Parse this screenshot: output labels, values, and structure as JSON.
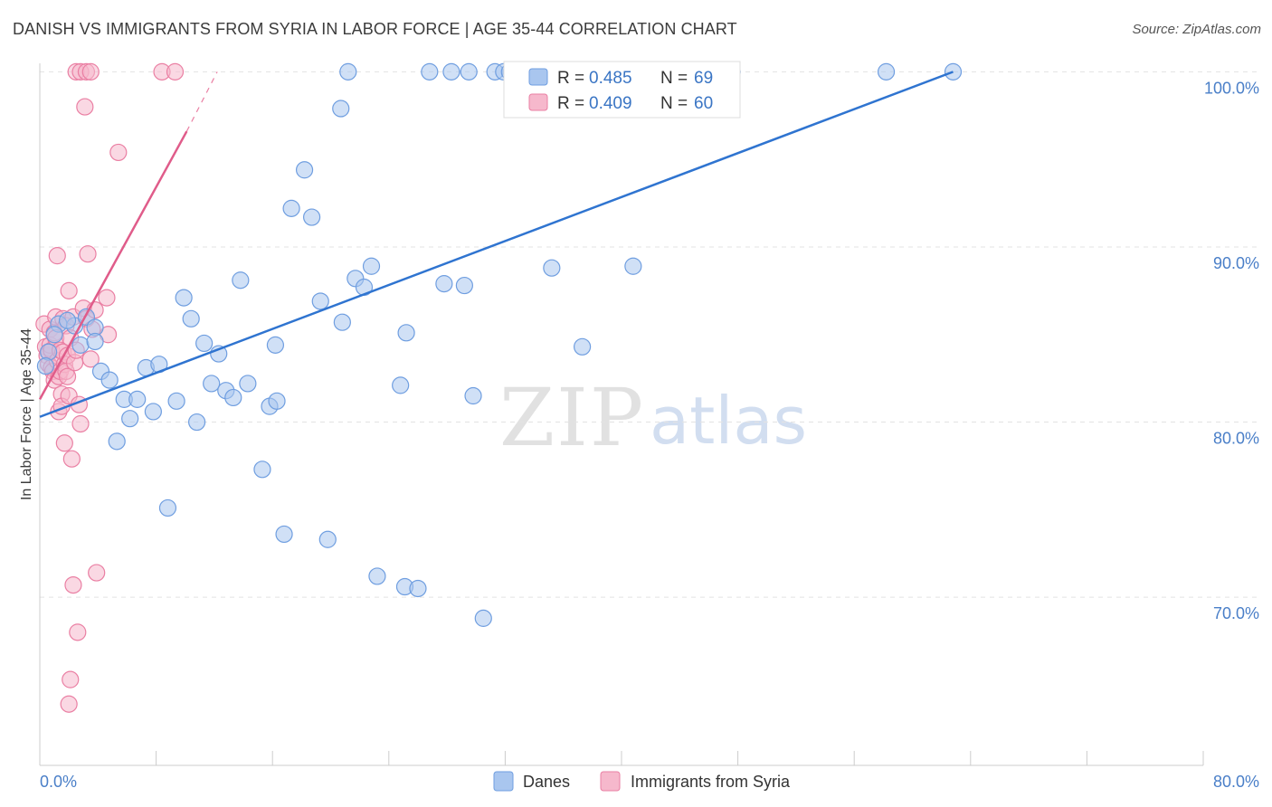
{
  "header": {
    "title": "DANISH VS IMMIGRANTS FROM SYRIA IN LABOR FORCE | AGE 35-44 CORRELATION CHART",
    "source": "Source: ZipAtlas.com"
  },
  "watermark": {
    "zip": "ZIP",
    "atlas": "atlas"
  },
  "colors": {
    "danes": "#6f9ee0",
    "danes_fill": "#a9c6ef",
    "danes_line": "#2f74d0",
    "syria": "#ea7fa3",
    "syria_fill": "#f6b8cc",
    "syria_line": "#e05c8a",
    "grid": "#e3e3e3",
    "tick_text": "#4a7fc8"
  },
  "legend": {
    "rows": [
      {
        "r_label": "R =",
        "r_value": "0.485",
        "n_label": "N =",
        "n_value": "69"
      },
      {
        "r_label": "R =",
        "r_value": "0.409",
        "n_label": "N =",
        "n_value": "60"
      }
    ]
  },
  "bottom_legend": {
    "danes": "Danes",
    "syria": "Immigrants from Syria"
  },
  "chart_data": {
    "type": "scatter",
    "title": "DANISH VS IMMIGRANTS FROM SYRIA IN LABOR FORCE | AGE 35-44 CORRELATION CHART",
    "xlabel": "",
    "ylabel": "In Labor Force | Age 35-44",
    "xlim": [
      0,
      80
    ],
    "ylim": [
      60.4,
      101
    ],
    "x_tick_labels": [
      "0.0%",
      "80.0%"
    ],
    "y_ticks": [
      70,
      80,
      90,
      100
    ],
    "y_tick_labels": [
      "70.0%",
      "80.0%",
      "90.0%",
      "100.0%"
    ],
    "grid": true,
    "series": [
      {
        "name": "Danes",
        "R": 0.485,
        "N": 69,
        "trendline": {
          "x0": 0.0,
          "y0": 80.3,
          "x1": 62.8,
          "y1": 100.0
        },
        "points": [
          [
            1.3,
            85.6
          ],
          [
            2.4,
            85.5
          ],
          [
            3.2,
            86.0
          ],
          [
            2.8,
            84.4
          ],
          [
            3.8,
            85.4
          ],
          [
            3.8,
            84.6
          ],
          [
            4.2,
            82.9
          ],
          [
            4.8,
            82.4
          ],
          [
            5.3,
            78.9
          ],
          [
            5.8,
            81.3
          ],
          [
            6.2,
            80.2
          ],
          [
            6.7,
            81.3
          ],
          [
            7.3,
            83.1
          ],
          [
            7.8,
            80.6
          ],
          [
            8.2,
            83.3
          ],
          [
            8.8,
            75.1
          ],
          [
            9.4,
            81.2
          ],
          [
            9.9,
            87.1
          ],
          [
            10.4,
            85.9
          ],
          [
            10.8,
            80.0
          ],
          [
            11.3,
            84.5
          ],
          [
            11.8,
            82.2
          ],
          [
            12.3,
            83.9
          ],
          [
            12.8,
            81.8
          ],
          [
            13.3,
            81.4
          ],
          [
            13.8,
            88.1
          ],
          [
            14.3,
            82.2
          ],
          [
            15.3,
            77.3
          ],
          [
            15.8,
            80.9
          ],
          [
            16.2,
            84.4
          ],
          [
            16.3,
            81.2
          ],
          [
            16.8,
            73.6
          ],
          [
            17.3,
            92.2
          ],
          [
            18.2,
            94.4
          ],
          [
            18.7,
            91.7
          ],
          [
            19.3,
            86.9
          ],
          [
            19.8,
            73.3
          ],
          [
            20.7,
            97.9
          ],
          [
            20.8,
            85.7
          ],
          [
            21.2,
            100.0
          ],
          [
            21.7,
            88.2
          ],
          [
            22.3,
            87.7
          ],
          [
            22.8,
            88.9
          ],
          [
            23.2,
            71.2
          ],
          [
            24.8,
            82.1
          ],
          [
            25.2,
            85.1
          ],
          [
            25.1,
            70.6
          ],
          [
            26.0,
            70.5
          ],
          [
            26.8,
            100.0
          ],
          [
            27.8,
            87.9
          ],
          [
            28.3,
            100.0
          ],
          [
            29.2,
            87.8
          ],
          [
            29.5,
            100.0
          ],
          [
            29.8,
            81.5
          ],
          [
            30.5,
            68.8
          ],
          [
            31.3,
            100.0
          ],
          [
            31.9,
            100.0
          ],
          [
            32.3,
            100.0
          ],
          [
            34.2,
            100.0
          ],
          [
            35.2,
            88.8
          ],
          [
            37.3,
            84.3
          ],
          [
            40.8,
            88.9
          ],
          [
            47.6,
            100.0
          ],
          [
            58.2,
            100.0
          ],
          [
            62.8,
            100.0
          ],
          [
            0.6,
            84.0
          ],
          [
            1.0,
            85.0
          ],
          [
            1.9,
            85.8
          ],
          [
            0.4,
            83.2
          ]
        ]
      },
      {
        "name": "Immigrants from Syria",
        "R": 0.409,
        "N": 60,
        "trendline": {
          "x0": 0.0,
          "y0": 81.3,
          "x1": 10.1,
          "y1": 96.6,
          "dash_x1": 12.2,
          "dash_y1": 100.0
        },
        "points": [
          [
            0.3,
            85.6
          ],
          [
            0.4,
            84.3
          ],
          [
            0.5,
            83.8
          ],
          [
            0.6,
            84.0
          ],
          [
            0.6,
            83.3
          ],
          [
            0.7,
            85.3
          ],
          [
            0.7,
            84.4
          ],
          [
            0.8,
            83.1
          ],
          [
            0.8,
            84.1
          ],
          [
            0.9,
            82.9
          ],
          [
            1.0,
            85.1
          ],
          [
            1.0,
            82.4
          ],
          [
            1.1,
            86.0
          ],
          [
            1.1,
            84.8
          ],
          [
            1.2,
            83.5
          ],
          [
            1.3,
            82.6
          ],
          [
            1.3,
            80.6
          ],
          [
            1.4,
            84.1
          ],
          [
            1.4,
            82.9
          ],
          [
            1.5,
            81.6
          ],
          [
            1.5,
            80.9
          ],
          [
            1.6,
            85.9
          ],
          [
            1.6,
            84.0
          ],
          [
            1.7,
            83.3
          ],
          [
            1.7,
            78.8
          ],
          [
            1.8,
            82.9
          ],
          [
            1.8,
            85.5
          ],
          [
            1.9,
            83.8
          ],
          [
            1.9,
            82.6
          ],
          [
            2.0,
            87.5
          ],
          [
            2.0,
            81.5
          ],
          [
            2.1,
            84.8
          ],
          [
            2.2,
            77.9
          ],
          [
            2.3,
            86.0
          ],
          [
            2.3,
            70.7
          ],
          [
            2.4,
            83.4
          ],
          [
            2.5,
            84.1
          ],
          [
            2.6,
            68.0
          ],
          [
            2.7,
            81.0
          ],
          [
            2.8,
            79.9
          ],
          [
            3.0,
            86.5
          ],
          [
            3.2,
            85.9
          ],
          [
            3.3,
            89.6
          ],
          [
            3.5,
            83.6
          ],
          [
            3.6,
            85.3
          ],
          [
            3.8,
            86.4
          ],
          [
            3.9,
            71.4
          ],
          [
            4.6,
            87.1
          ],
          [
            4.7,
            85.0
          ],
          [
            5.4,
            95.4
          ],
          [
            1.2,
            89.5
          ],
          [
            2.1,
            65.3
          ],
          [
            2.0,
            63.9
          ],
          [
            3.1,
            98.0
          ],
          [
            2.5,
            100.0
          ],
          [
            2.8,
            100.0
          ],
          [
            3.2,
            100.0
          ],
          [
            3.5,
            100.0
          ],
          [
            8.4,
            100.0
          ],
          [
            9.3,
            100.0
          ]
        ]
      }
    ]
  }
}
